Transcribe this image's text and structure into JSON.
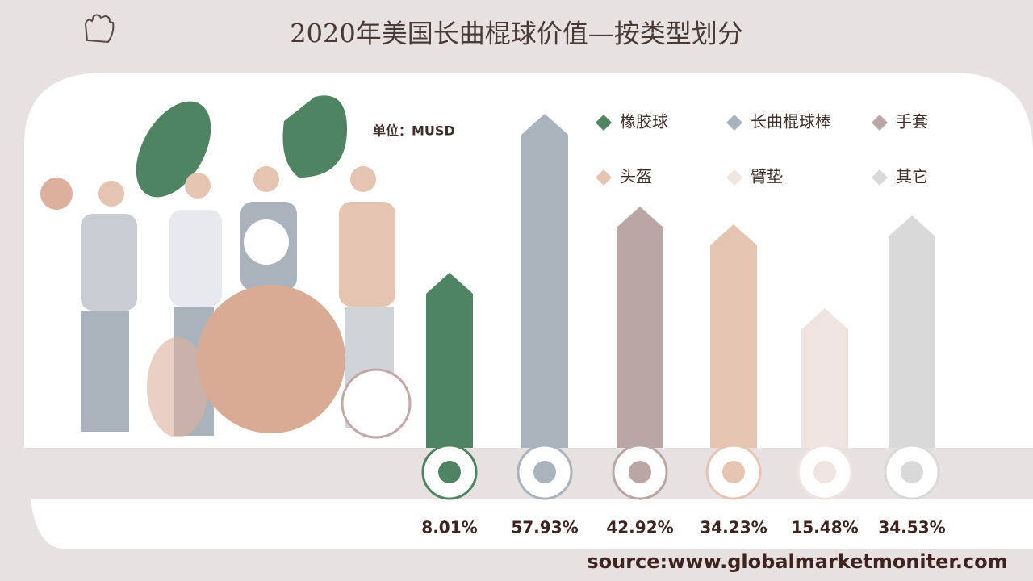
{
  "chart_data": {
    "type": "arrow-bar",
    "title": "2020年美国长曲棍球价值—按类型划分",
    "unit_label": "单位：MUSD",
    "categories": [
      "橡胶球",
      "长曲棍球棒",
      "手套",
      "头盔",
      "臂垫",
      "其它"
    ],
    "values": [
      217,
      414,
      299,
      277,
      173,
      288
    ],
    "colors": [
      "#4f8462",
      "#aab3bc",
      "#bba6a6",
      "#e6c4b2",
      "#efe4e0",
      "#d9d9d9"
    ],
    "ylim": [
      0,
      420
    ],
    "growth_labels": [
      "8.01%",
      "57.93%",
      "42.92%",
      "34.23%",
      "15.48%",
      "34.53%"
    ],
    "source": "source:www.globalmarketmoniter.com"
  }
}
